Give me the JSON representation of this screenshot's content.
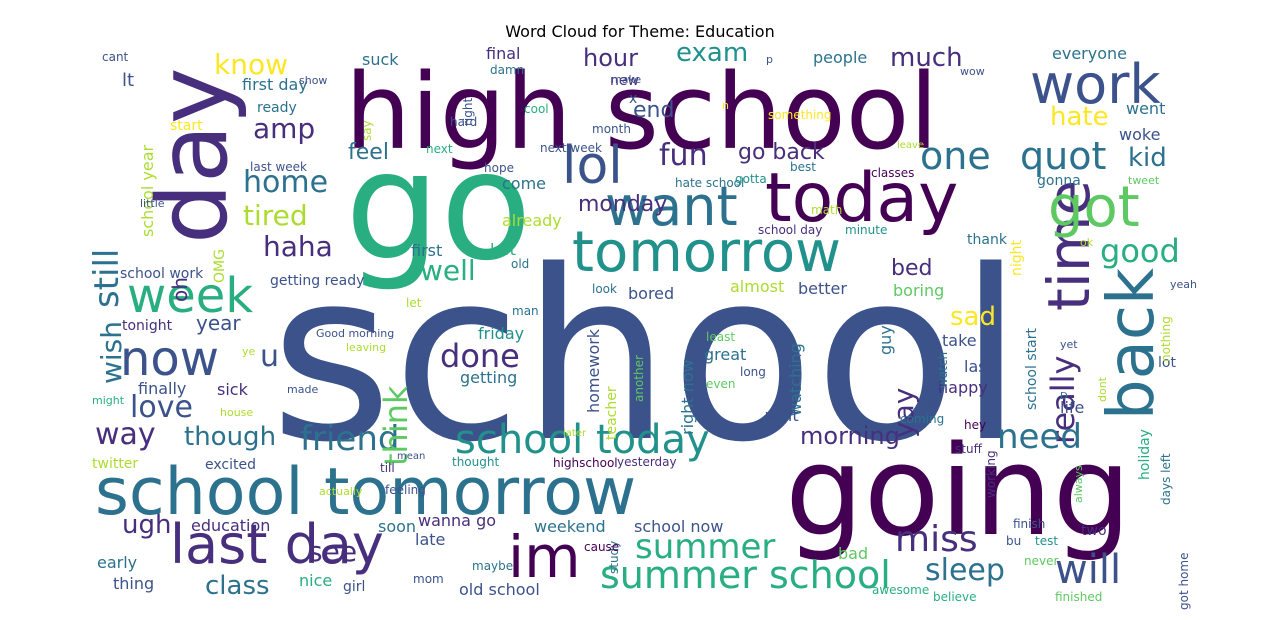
{
  "title": "Word Cloud for Theme: Education",
  "palette": {
    "dark_purple": "#440154",
    "indigo": "#472f7d",
    "slate_blue": "#3b528b",
    "steel_blue": "#2c728e",
    "teal": "#21918c",
    "sea_green": "#28ae80",
    "green": "#5ec962",
    "lime": "#addc30",
    "yellow": "#fde725"
  },
  "words": [
    {
      "text": "school"
    },
    {
      "text": "high school"
    },
    {
      "text": "go"
    },
    {
      "text": "going"
    },
    {
      "text": "day"
    },
    {
      "text": "school tomorrow"
    },
    {
      "text": "today"
    },
    {
      "text": "back"
    },
    {
      "text": "time"
    },
    {
      "text": "tomorrow"
    },
    {
      "text": "work"
    },
    {
      "text": "last day"
    },
    {
      "text": "want"
    },
    {
      "text": "got"
    },
    {
      "text": "now"
    },
    {
      "text": "week"
    },
    {
      "text": "im"
    },
    {
      "text": "lol"
    },
    {
      "text": "school today"
    },
    {
      "text": "summer school"
    },
    {
      "text": "quot"
    },
    {
      "text": "one"
    },
    {
      "text": "miss"
    },
    {
      "text": "will"
    },
    {
      "text": "really"
    },
    {
      "text": "need"
    },
    {
      "text": "summer"
    },
    {
      "text": "sleep"
    },
    {
      "text": "friend"
    },
    {
      "text": "done"
    },
    {
      "text": "think"
    },
    {
      "text": "good"
    },
    {
      "text": "still"
    },
    {
      "text": "amp"
    },
    {
      "text": "exam"
    },
    {
      "text": "much"
    },
    {
      "text": "love"
    },
    {
      "text": "home"
    },
    {
      "text": "haha"
    },
    {
      "text": "well"
    },
    {
      "text": "fun"
    },
    {
      "text": "wish"
    },
    {
      "text": "way"
    },
    {
      "text": "see"
    },
    {
      "text": "class"
    },
    {
      "text": "know"
    },
    {
      "text": "tired"
    },
    {
      "text": "u"
    },
    {
      "text": "ugh"
    },
    {
      "text": "morning"
    },
    {
      "text": "hate"
    },
    {
      "text": "kid"
    },
    {
      "text": "sad"
    },
    {
      "text": "yay"
    },
    {
      "text": "though"
    },
    {
      "text": "year"
    },
    {
      "text": "hour"
    },
    {
      "text": "end"
    },
    {
      "text": "go back"
    },
    {
      "text": "bed"
    },
    {
      "text": "feel"
    },
    {
      "text": "monday"
    },
    {
      "text": "oh"
    },
    {
      "text": "lt"
    },
    {
      "text": "school year"
    },
    {
      "text": "first day"
    },
    {
      "text": "ready"
    },
    {
      "text": "start"
    },
    {
      "text": "suck"
    },
    {
      "text": "final"
    },
    {
      "text": "people"
    },
    {
      "text": "everyone"
    },
    {
      "text": "went"
    },
    {
      "text": "woke"
    },
    {
      "text": "gonna"
    },
    {
      "text": "tweet"
    },
    {
      "text": "night"
    },
    {
      "text": "thank"
    },
    {
      "text": "guy"
    },
    {
      "text": "boring"
    },
    {
      "text": "almost"
    },
    {
      "text": "better"
    },
    {
      "text": "bored"
    },
    {
      "text": "getting ready"
    },
    {
      "text": "school work"
    },
    {
      "text": "tonight"
    },
    {
      "text": "friday"
    },
    {
      "text": "great"
    },
    {
      "text": "take"
    },
    {
      "text": "last"
    },
    {
      "text": "happy"
    },
    {
      "text": "lot"
    },
    {
      "text": "school start"
    },
    {
      "text": "watching"
    },
    {
      "text": "right now"
    },
    {
      "text": "homework"
    },
    {
      "text": "teacher"
    },
    {
      "text": "getting"
    },
    {
      "text": "finally"
    },
    {
      "text": "sick"
    },
    {
      "text": "wait"
    },
    {
      "text": "life"
    },
    {
      "text": "excited"
    },
    {
      "text": "twitter"
    },
    {
      "text": "education"
    },
    {
      "text": "early"
    },
    {
      "text": "thing"
    },
    {
      "text": "nice"
    },
    {
      "text": "girl"
    },
    {
      "text": "soon"
    },
    {
      "text": "late"
    },
    {
      "text": "wanna go"
    },
    {
      "text": "weekend"
    },
    {
      "text": "school now"
    },
    {
      "text": "old school"
    },
    {
      "text": "bad"
    },
    {
      "text": "holiday"
    },
    {
      "text": "days left"
    },
    {
      "text": "two"
    },
    {
      "text": "finish"
    },
    {
      "text": "test"
    },
    {
      "text": "bu"
    },
    {
      "text": "never"
    },
    {
      "text": "got home"
    },
    {
      "text": "finished"
    },
    {
      "text": "believe"
    },
    {
      "text": "awesome"
    },
    {
      "text": "maybe"
    },
    {
      "text": "mom"
    },
    {
      "text": "study"
    },
    {
      "text": "cause"
    },
    {
      "text": "thought"
    },
    {
      "text": "highschool"
    },
    {
      "text": "yesterday"
    },
    {
      "text": "feeling"
    },
    {
      "text": "till"
    },
    {
      "text": "mean"
    },
    {
      "text": "stuff"
    },
    {
      "text": "working"
    },
    {
      "text": "always"
    },
    {
      "text": "hey"
    },
    {
      "text": "ill"
    },
    {
      "text": "coming"
    },
    {
      "text": "later"
    },
    {
      "text": "another"
    },
    {
      "text": "even"
    },
    {
      "text": "long"
    },
    {
      "text": "watch"
    },
    {
      "text": "least"
    },
    {
      "text": "look"
    },
    {
      "text": "man"
    },
    {
      "text": "let"
    },
    {
      "text": "old"
    },
    {
      "text": "left"
    },
    {
      "text": "first"
    },
    {
      "text": "come"
    },
    {
      "text": "already"
    },
    {
      "text": "school day"
    },
    {
      "text": "minute"
    },
    {
      "text": "hate school"
    },
    {
      "text": "gotta"
    },
    {
      "text": "math"
    },
    {
      "text": "classes"
    },
    {
      "text": "leave"
    },
    {
      "text": "best"
    },
    {
      "text": "OMG"
    },
    {
      "text": "hope"
    },
    {
      "text": "next week"
    },
    {
      "text": "next"
    },
    {
      "text": "month"
    },
    {
      "text": "something"
    },
    {
      "text": "hard"
    },
    {
      "text": "say"
    },
    {
      "text": "cool"
    },
    {
      "text": "x"
    },
    {
      "text": "new"
    },
    {
      "text": "make"
    },
    {
      "text": "n"
    },
    {
      "text": "p"
    },
    {
      "text": "wow"
    },
    {
      "text": "damn"
    },
    {
      "text": "right"
    },
    {
      "text": "show"
    },
    {
      "text": "cant"
    },
    {
      "text": "last week"
    },
    {
      "text": "little"
    },
    {
      "text": "Good morning"
    },
    {
      "text": "leaving"
    },
    {
      "text": "ye"
    },
    {
      "text": "made"
    },
    {
      "text": "house"
    },
    {
      "text": "might"
    },
    {
      "text": "yet"
    },
    {
      "text": "dont"
    },
    {
      "text": "nothing"
    },
    {
      "text": "yeah"
    },
    {
      "text": "ok"
    },
    {
      "text": "actually"
    },
    {
      "text": "D"
    },
    {
      "text": "s"
    }
  ]
}
